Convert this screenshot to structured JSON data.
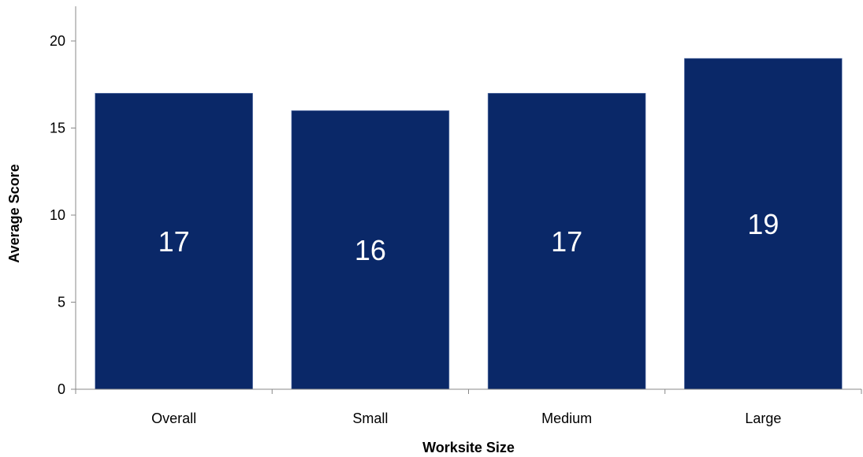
{
  "chart_data": {
    "type": "bar",
    "categories": [
      "Overall",
      "Small",
      "Medium",
      "Large"
    ],
    "values": [
      17,
      16,
      17,
      19
    ],
    "data_labels": [
      "17",
      "16",
      "17",
      "19"
    ],
    "xlabel": "Worksite Size",
    "ylabel": "Average Score",
    "ylim": [
      0,
      20
    ],
    "yticks": [
      0,
      5,
      10,
      15,
      20
    ],
    "ytick_labels": [
      "0",
      "5",
      "10",
      "15",
      "20"
    ],
    "grid": false,
    "legend": "none",
    "bar_color": "#0a2868",
    "label_color": "#ffffff"
  }
}
